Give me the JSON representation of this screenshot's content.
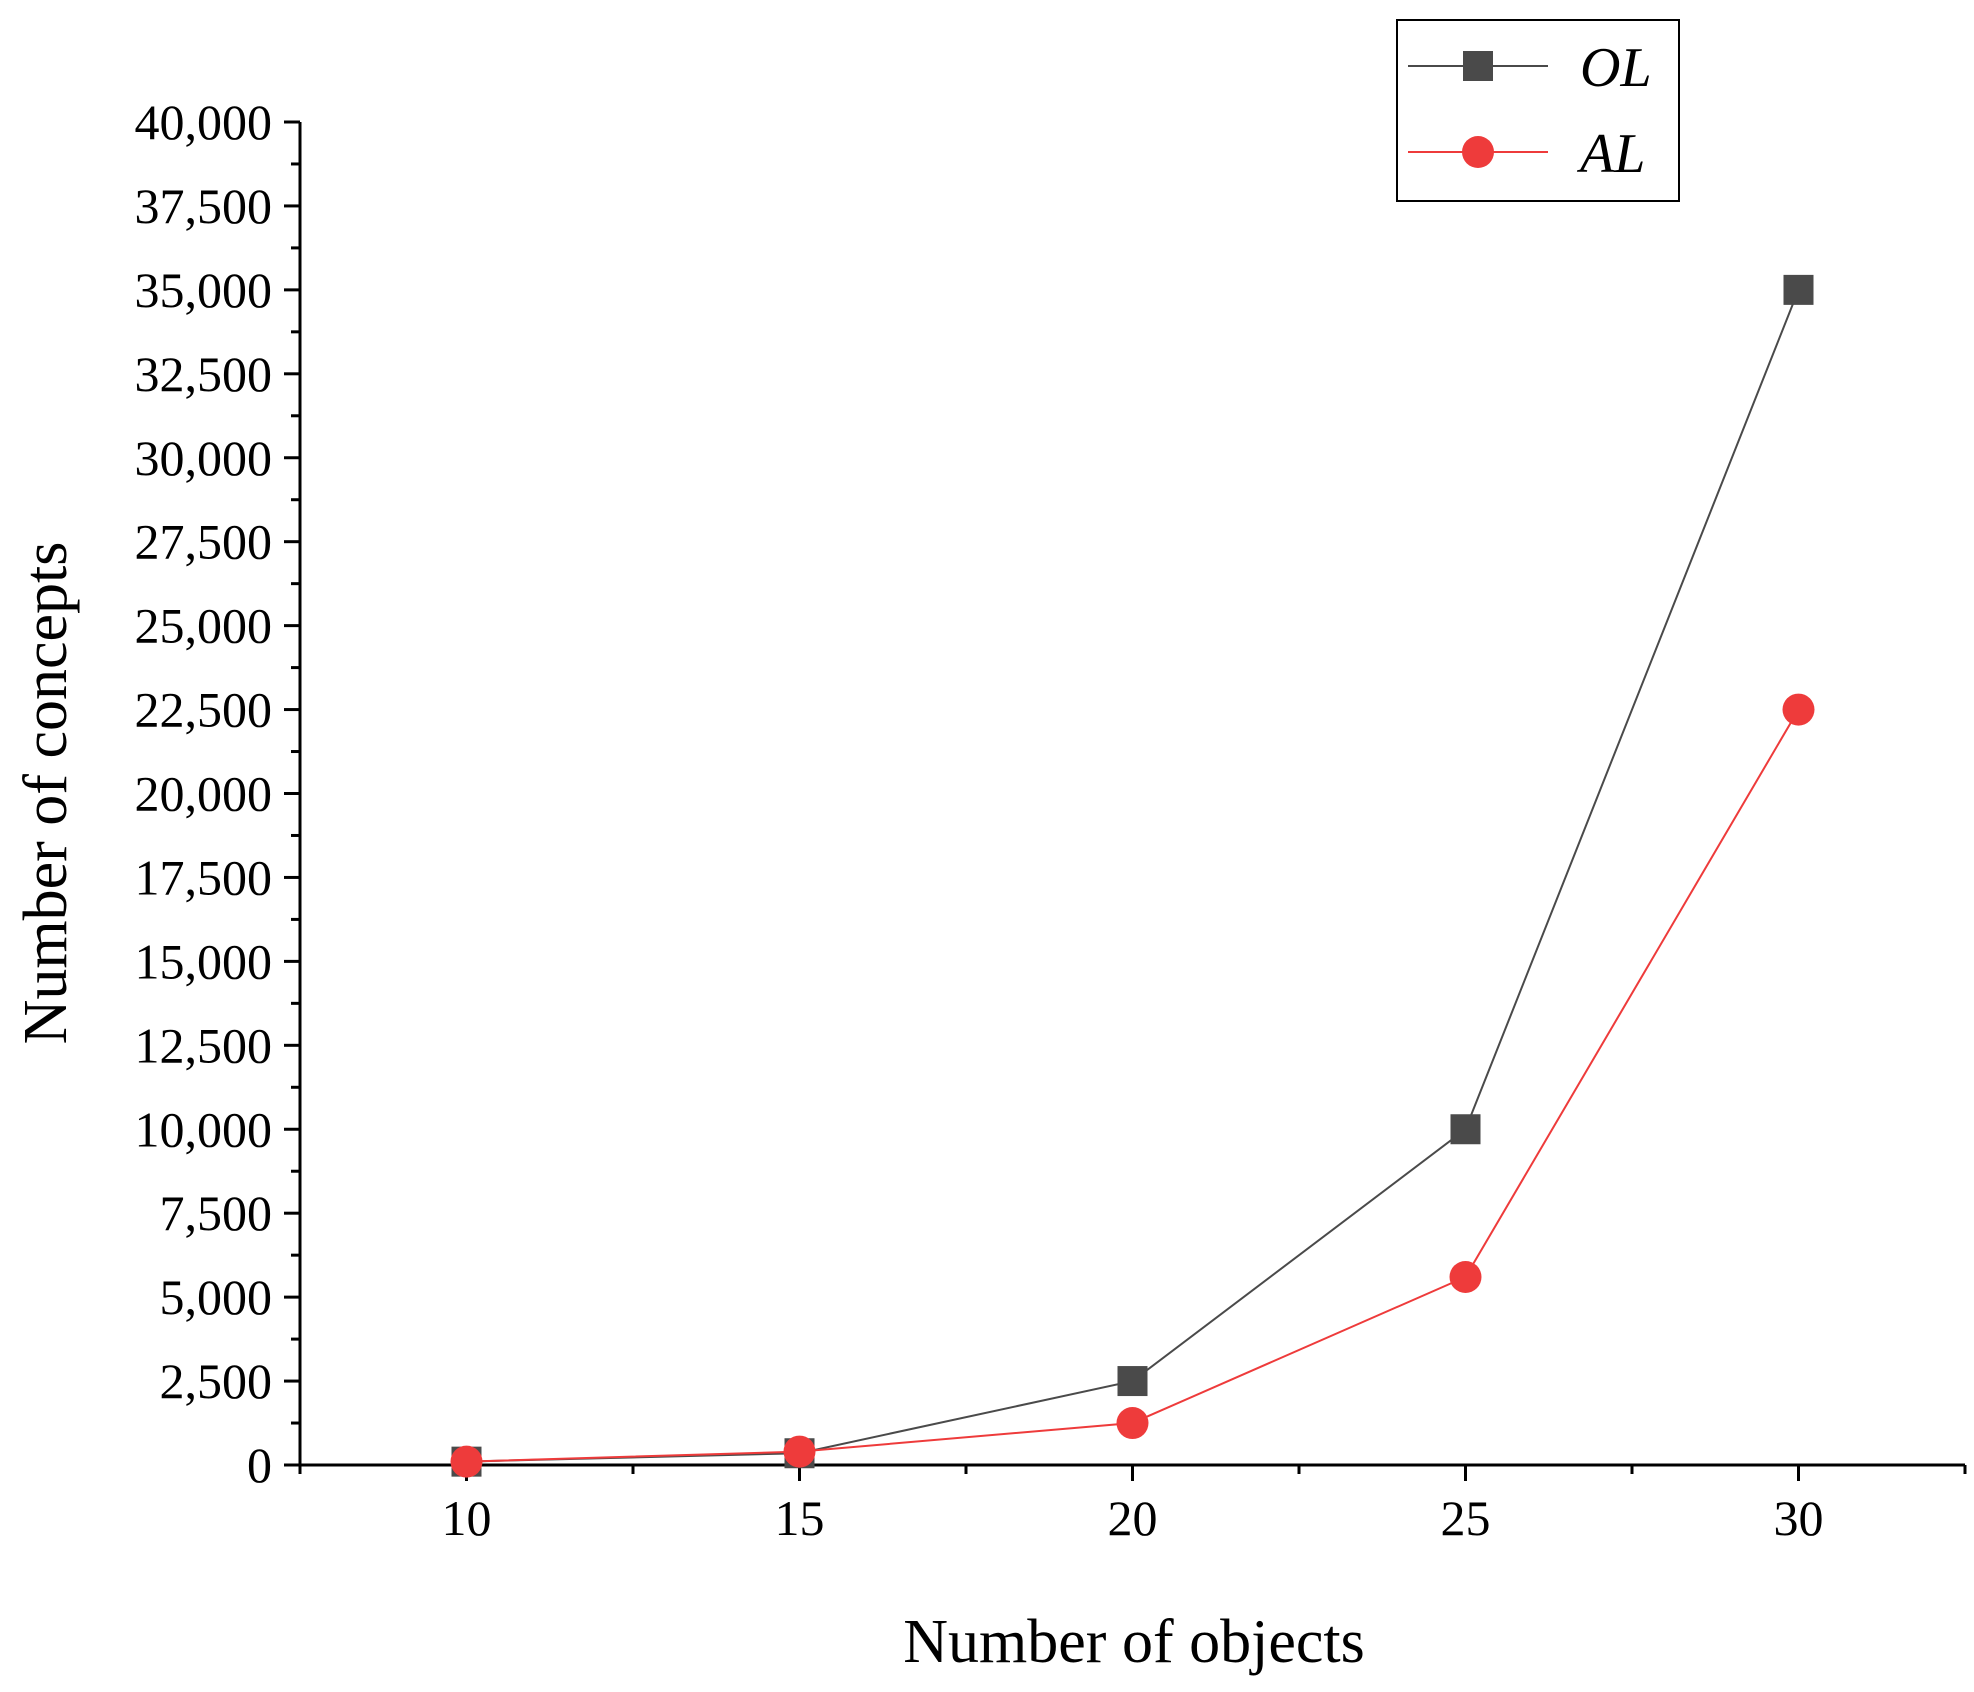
{
  "chart_data": {
    "type": "line",
    "xlabel": "Number of objects",
    "ylabel": "Number of concepts",
    "x": [
      10,
      15,
      20,
      25,
      30
    ],
    "xlim": [
      7.5,
      32.5
    ],
    "ylim": [
      0,
      40000
    ],
    "x_ticks": [
      "10",
      "15",
      "20",
      "25",
      "30"
    ],
    "y_ticks": [
      "0",
      "2,500",
      "5,000",
      "7,500",
      "10,000",
      "12,500",
      "15,000",
      "17,500",
      "20,000",
      "22,500",
      "25,000",
      "27,500",
      "30,000",
      "32,500",
      "35,000",
      "37,500",
      "40,000"
    ],
    "grid": false,
    "legend_position": "top-right",
    "series": [
      {
        "name": "OL",
        "marker": "square",
        "color": "#4a4a4a",
        "values": [
          100,
          350,
          2500,
          10000,
          35000
        ]
      },
      {
        "name": "AL",
        "marker": "circle",
        "color": "#ee3b3b",
        "values": [
          100,
          400,
          1250,
          5600,
          22500
        ]
      }
    ]
  }
}
